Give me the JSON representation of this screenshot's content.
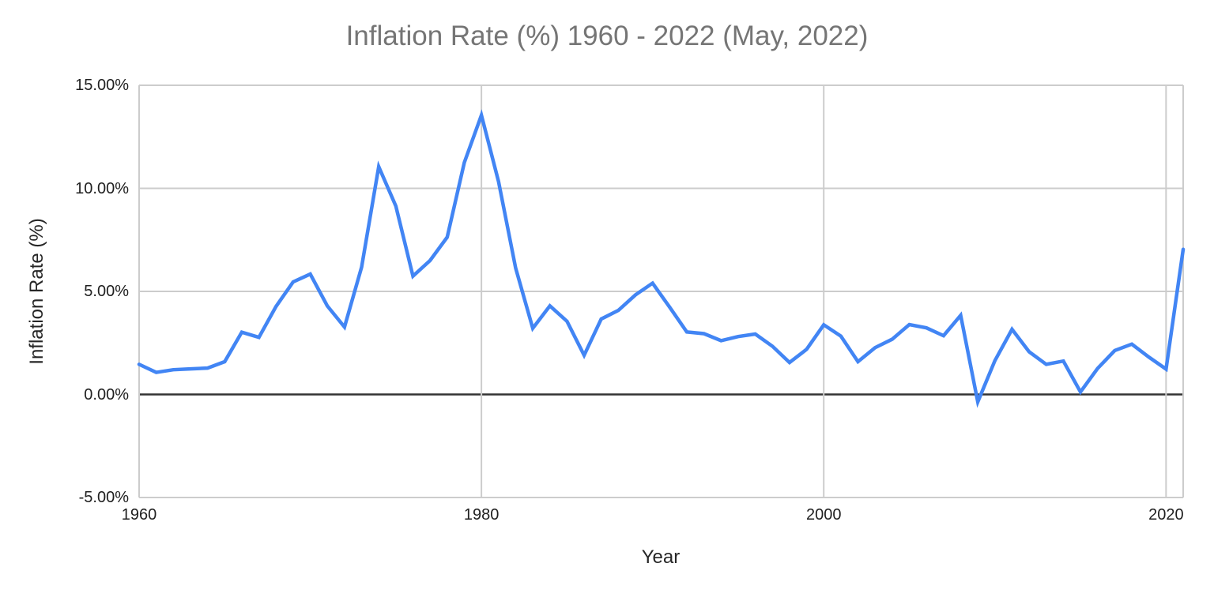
{
  "chart": {
    "title": "Inflation Rate (%) 1960 - 2022 (May, 2022)",
    "x_axis_title": "Year",
    "y_axis_title": "Inflation Rate (%)"
  },
  "chart_data": {
    "type": "line",
    "title": "Inflation Rate (%) 1960 - 2022 (May, 2022)",
    "xlabel": "Year",
    "ylabel": "Inflation Rate (%)",
    "x": [
      1960,
      1961,
      1962,
      1963,
      1964,
      1965,
      1966,
      1967,
      1968,
      1969,
      1970,
      1971,
      1972,
      1973,
      1974,
      1975,
      1976,
      1977,
      1978,
      1979,
      1980,
      1981,
      1982,
      1983,
      1984,
      1985,
      1986,
      1987,
      1988,
      1989,
      1990,
      1991,
      1992,
      1993,
      1994,
      1995,
      1996,
      1997,
      1998,
      1999,
      2000,
      2001,
      2002,
      2003,
      2004,
      2005,
      2006,
      2007,
      2008,
      2009,
      2010,
      2011,
      2012,
      2013,
      2014,
      2015,
      2016,
      2017,
      2018,
      2019,
      2020,
      2021
    ],
    "series": [
      {
        "name": "Inflation Rate (%)",
        "values": [
          1.46,
          1.07,
          1.2,
          1.24,
          1.28,
          1.59,
          3.02,
          2.77,
          4.27,
          5.46,
          5.84,
          4.29,
          3.27,
          6.18,
          11.05,
          9.14,
          5.74,
          6.5,
          7.63,
          11.25,
          13.55,
          10.33,
          6.13,
          3.21,
          4.3,
          3.55,
          1.9,
          3.66,
          4.08,
          4.83,
          5.4,
          4.23,
          3.03,
          2.95,
          2.61,
          2.81,
          2.93,
          2.34,
          1.55,
          2.19,
          3.38,
          2.83,
          1.59,
          2.27,
          2.68,
          3.39,
          3.23,
          2.85,
          3.84,
          -0.36,
          1.64,
          3.16,
          2.07,
          1.46,
          1.62,
          0.12,
          1.26,
          2.13,
          2.44,
          1.81,
          1.23,
          7.04
        ]
      }
    ],
    "xlim": [
      1960,
      2021
    ],
    "ylim": [
      -5,
      15
    ],
    "x_ticks": [
      1960,
      1980,
      2000,
      2020
    ],
    "y_ticks": [
      {
        "value": 15,
        "label": "15.00%"
      },
      {
        "value": 10,
        "label": "10.00%"
      },
      {
        "value": 5,
        "label": "5.00%"
      },
      {
        "value": 0,
        "label": "0.00%"
      },
      {
        "value": -5,
        "label": "-5.00%"
      }
    ],
    "grid": true,
    "legend_position": "none",
    "colors": {
      "line": "#4285f4",
      "grid": "#cccccc",
      "zero_line": "#333333",
      "border": "#cccccc",
      "title": "#757575",
      "tick_label": "#202020",
      "axis_title": "#262626",
      "background": "#ffffff"
    }
  }
}
